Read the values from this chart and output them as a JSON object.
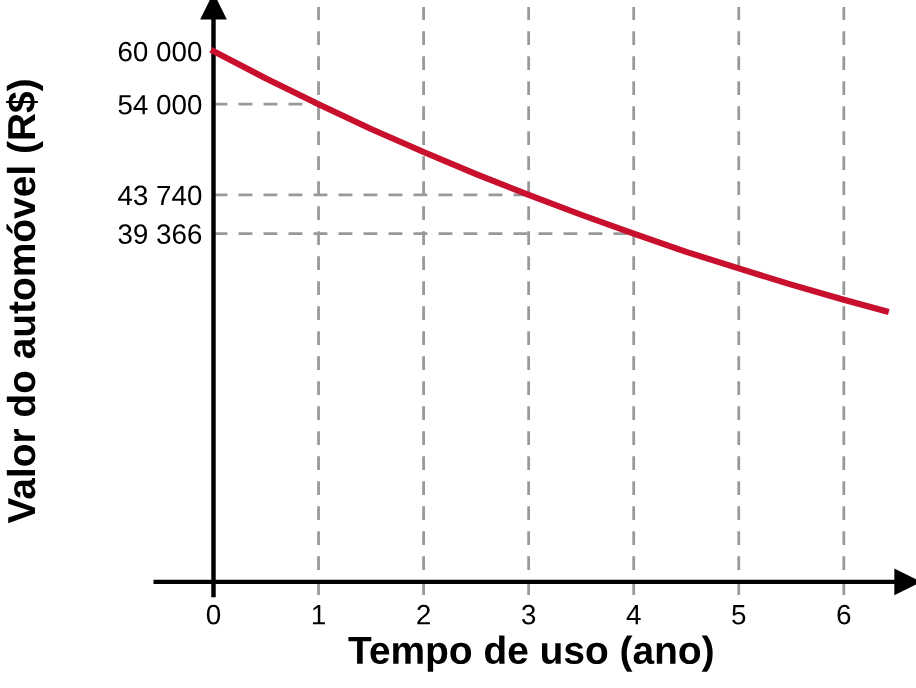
{
  "chart_data": {
    "type": "line",
    "xlabel": "Tempo de uso (ano)",
    "ylabel": "Valor do automóvel (R$)",
    "x": [
      0,
      0.5,
      1,
      1.5,
      2,
      2.5,
      3,
      3.5,
      4,
      4.5,
      5,
      5.5,
      6,
      6.4
    ],
    "series": [
      {
        "color": "#c8102e",
        "values": [
          60000,
          56900,
          54000,
          51200,
          48600,
          46100,
          43740,
          41500,
          39366,
          37300,
          35430,
          33600,
          31890,
          30600
        ]
      }
    ],
    "xlim": [
      -0.55,
      6.6
    ],
    "ylim": [
      -1500,
      65000
    ],
    "xticks": [
      0,
      1,
      2,
      3,
      4,
      5,
      6
    ],
    "yticks": [
      {
        "value": 39366,
        "label": "39 366"
      },
      {
        "value": 43740,
        "label": "43 740"
      },
      {
        "value": 54000,
        "label": "54 000"
      },
      {
        "value": 60000,
        "label": "60 000"
      }
    ],
    "grid": "x",
    "ref_lines": [
      {
        "axis": "y",
        "value": 54000,
        "color": "#999999",
        "line_style": "dashed"
      },
      {
        "axis": "y",
        "value": 43740,
        "color": "#999999",
        "line_style": "dashed"
      },
      {
        "axis": "y",
        "value": 39366,
        "color": "#999999",
        "line_style": "dashed"
      }
    ],
    "marker": "none",
    "line_style": "solid"
  }
}
